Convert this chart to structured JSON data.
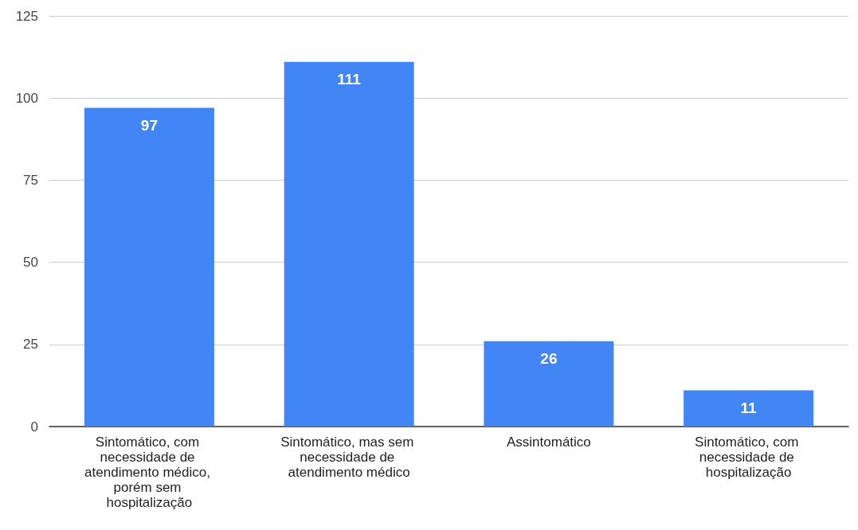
{
  "chart_data": {
    "type": "bar",
    "categories": [
      "Sintomático, com necessidade de atendimento médico, porém sem hospitalização",
      "Sintomático, mas sem necessidade de atendimento médico",
      "Assintomático",
      "Sintomático, com necessidade de hospitalização"
    ],
    "values": [
      97,
      111,
      26,
      11
    ],
    "color": "#4285f4",
    "ylim": [
      0,
      125
    ],
    "yticks": [
      0,
      25,
      50,
      75,
      100,
      125
    ],
    "grid": "y",
    "data_labels": true
  }
}
